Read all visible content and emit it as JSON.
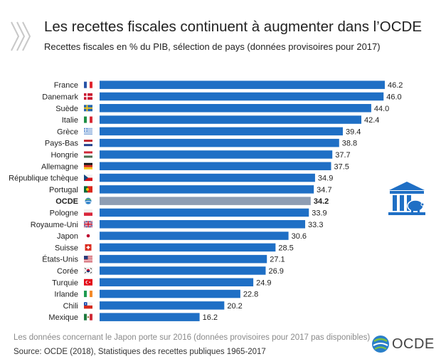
{
  "header": {
    "title": "Les recettes fiscales continuent à augmenter dans l’OCDE",
    "subtitle": "Recettes fiscales en % du PIB, sélection de pays (données provisoires pour 2017)"
  },
  "chart_data": {
    "type": "bar",
    "orientation": "horizontal",
    "categories": [
      "France",
      "Danemark",
      "Suède",
      "Italie",
      "Grèce",
      "Pays-Bas",
      "Hongrie",
      "Allemagne",
      "République tchèque",
      "Portugal",
      "OCDE",
      "Pologne",
      "Royaume-Uni",
      "Japon",
      "Suisse",
      "États-Unis",
      "Corée",
      "Turquie",
      "Irlande",
      "Chili",
      "Mexique"
    ],
    "values": [
      46.2,
      46.0,
      44.0,
      42.4,
      39.4,
      38.8,
      37.7,
      37.5,
      34.9,
      34.7,
      34.2,
      33.9,
      33.3,
      30.6,
      28.5,
      27.1,
      26.9,
      24.9,
      22.8,
      20.2,
      16.2
    ],
    "value_labels": [
      "46.2",
      "46.0",
      "44.0",
      "42.4",
      "39.4",
      "38.8",
      "37.7",
      "37.5",
      "34.9",
      "34.7",
      "34.2",
      "33.9",
      "33.3",
      "30.6",
      "28.5",
      "27.1",
      "26.9",
      "24.9",
      "22.8",
      "20.2",
      "16.2"
    ],
    "highlight": "OCDE",
    "bar_color": "#1f6fc5",
    "highlight_color": "#8e9db3",
    "xlim": [
      0,
      46.2
    ],
    "grid": false,
    "legend": "none",
    "flags": [
      "france",
      "denmark",
      "sweden",
      "italy",
      "greece",
      "netherlands",
      "hungary",
      "germany",
      "czech",
      "portugal",
      "oecd",
      "poland",
      "uk",
      "japan",
      "switzerland",
      "usa",
      "korea",
      "turkey",
      "ireland",
      "chile",
      "mexico"
    ]
  },
  "footer": {
    "note": "Les données concernant le Japon porte sur 2016 (données provisoires pour 2017 pas disponibles)",
    "source": "Source: OCDE (2018), Statistiques des recettes publiques 1965-2017",
    "logo_text": "OCDE"
  },
  "icons": {
    "header": "chevrons-icon",
    "decoration": "bank-piggy-icon",
    "logo": "oecd-globe-icon"
  }
}
